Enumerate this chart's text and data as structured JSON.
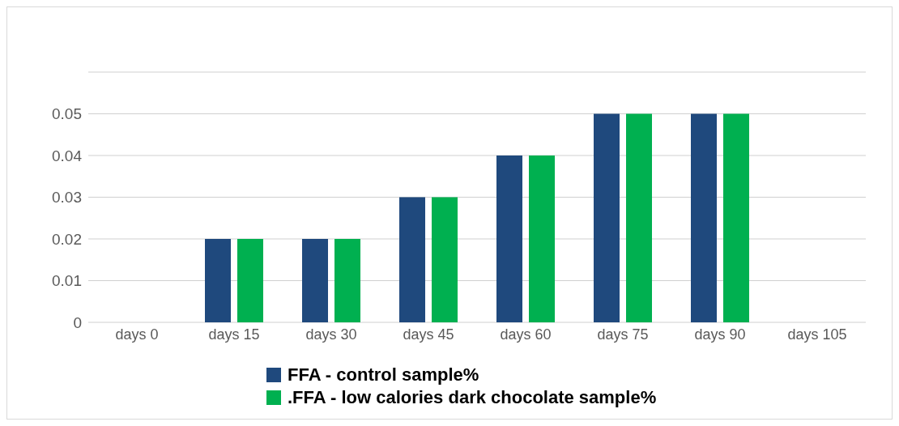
{
  "chart_data": {
    "type": "bar",
    "categories": [
      "days 0",
      "days 15",
      "days 30",
      "days 45",
      "days 60",
      "days 75",
      "days 90",
      "days 105"
    ],
    "series": [
      {
        "name": "FFA - control sample%",
        "color": "#1f497d",
        "values": [
          0,
          0.02,
          0.02,
          0.03,
          0.04,
          0.05,
          0.05,
          null
        ]
      },
      {
        "name": ".FFA - low calories dark chocolate sample%",
        "color": "#00b050",
        "values": [
          0,
          0.02,
          0.02,
          0.03,
          0.04,
          0.05,
          0.05,
          null
        ]
      }
    ],
    "ylim": [
      0,
      0.06
    ],
    "yticks": [
      0,
      0.01,
      0.02,
      0.03,
      0.04,
      0.05,
      {
        "value": 0.06,
        "label": null
      }
    ],
    "grid": "y",
    "legend": "bottom"
  }
}
